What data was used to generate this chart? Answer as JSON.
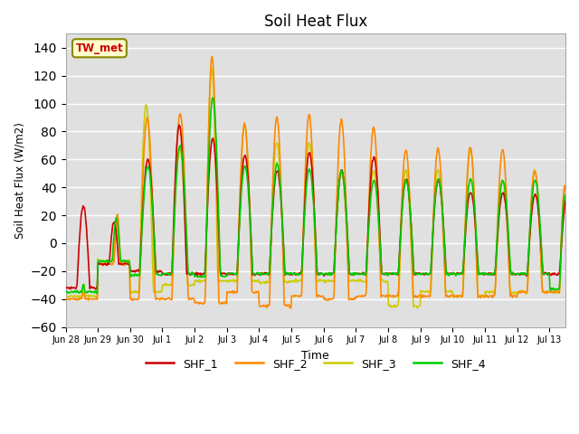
{
  "title": "Soil Heat Flux",
  "ylabel": "Soil Heat Flux (W/m2)",
  "xlabel": "Time",
  "annotation": "TW_met",
  "ylim": [
    -60,
    150
  ],
  "yticks": [
    -60,
    -40,
    -20,
    0,
    20,
    40,
    60,
    80,
    100,
    120,
    140
  ],
  "plot_bg_color": "#e0e0e0",
  "colors": {
    "SHF_1": "#cc0000",
    "SHF_2": "#ff8800",
    "SHF_3": "#cccc00",
    "SHF_4": "#00cc00"
  },
  "tick_labels": [
    "Jun 28",
    "Jun 29",
    "Jun 30",
    "Jul 1",
    "Jul 2",
    "Jul 3",
    "Jul 4",
    "Jul 5",
    "Jul 6",
    "Jul 7",
    "Jul 8",
    "Jul 9",
    "Jul 10",
    "Jul 11",
    "Jul 12",
    "Jul 13"
  ],
  "legend_labels": [
    "SHF_1",
    "SHF_2",
    "SHF_3",
    "SHF_4"
  ]
}
